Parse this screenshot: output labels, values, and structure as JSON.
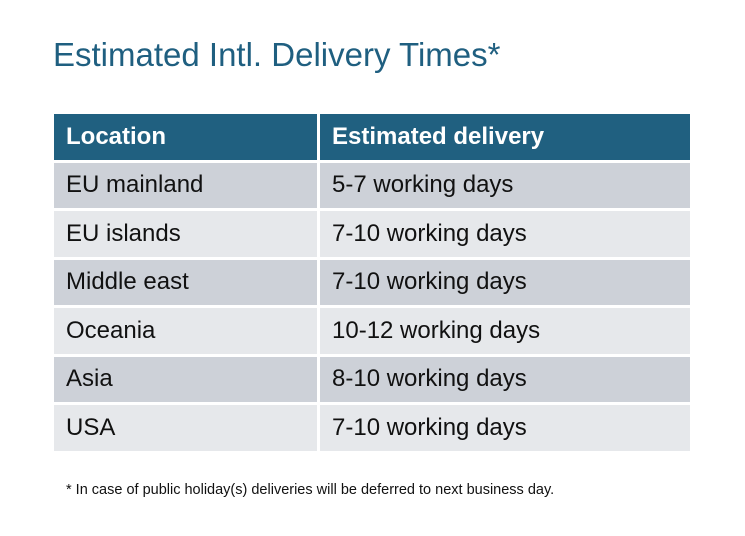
{
  "title": "Estimated Intl. Delivery Times*",
  "table": {
    "headers": [
      "Location",
      "Estimated delivery"
    ],
    "rows": [
      [
        "EU mainland",
        "5-7 working days"
      ],
      [
        "EU islands",
        "7-10 working days"
      ],
      [
        "Middle east",
        "7-10 working days"
      ],
      [
        "Oceania",
        "10-12 working days"
      ],
      [
        "Asia",
        "8-10 working days"
      ],
      [
        "USA",
        "7-10 working days"
      ]
    ]
  },
  "footnote": "* In case of public holiday(s) deliveries will be deferred to next business day.",
  "colors": {
    "header": "#206080",
    "row_dark": "#cdd1d8",
    "row_light": "#e6e8eb",
    "title": "#1f5f80"
  }
}
